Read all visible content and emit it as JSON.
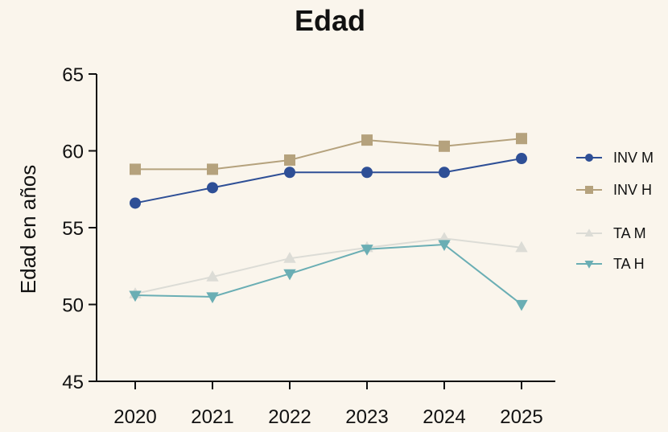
{
  "chart_data": {
    "type": "line",
    "title": "Edad",
    "xlabel": "",
    "ylabel": "Edad en años",
    "x": [
      2020,
      2021,
      2022,
      2023,
      2024,
      2025
    ],
    "ylim": [
      45,
      65
    ],
    "yticks": [
      45,
      50,
      55,
      60,
      65
    ],
    "grid": false,
    "legend_position": "right",
    "series": [
      {
        "name": "INV M",
        "marker": "circle",
        "color": "#2e4f96",
        "values": [
          56.6,
          57.6,
          58.6,
          58.6,
          58.6,
          59.5
        ]
      },
      {
        "name": "INV H",
        "marker": "square",
        "color": "#b5a27d",
        "values": [
          58.8,
          58.8,
          59.4,
          60.7,
          60.3,
          60.8
        ]
      },
      {
        "name": "TA M",
        "marker": "triangle-up",
        "color": "#dcdcd6",
        "values": [
          50.7,
          51.8,
          53.0,
          53.7,
          54.3,
          53.7
        ]
      },
      {
        "name": "TA H",
        "marker": "triangle-down",
        "color": "#6aaeb4",
        "values": [
          50.6,
          50.5,
          52.0,
          53.6,
          53.9,
          50.0
        ]
      }
    ]
  }
}
